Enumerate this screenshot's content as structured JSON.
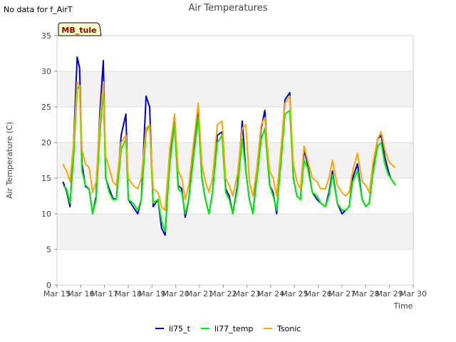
{
  "header": {
    "no_data": "No data for f_AirT",
    "title": "Air Temperatures"
  },
  "badge": "MB_tule",
  "chart_data": {
    "type": "line",
    "title": "Air Temperatures",
    "xlabel": "Time",
    "ylabel": "Air Temperature (C)",
    "ylim": [
      0,
      35
    ],
    "xlim": [
      15,
      30
    ],
    "yticks": [
      0,
      5,
      10,
      15,
      20,
      25,
      30,
      35
    ],
    "xticks": [
      15,
      16,
      17,
      18,
      19,
      20,
      21,
      22,
      23,
      24,
      25,
      26,
      27,
      28,
      29,
      30
    ],
    "xtick_labels": [
      "Mar 15",
      "Mar 16",
      "Mar 17",
      "Mar 18",
      "Mar 19",
      "Mar 20",
      "Mar 21",
      "Mar 22",
      "Mar 23",
      "Mar 24",
      "Mar 25",
      "Mar 26",
      "Mar 27",
      "Mar 28",
      "Mar 29",
      "Mar 30"
    ],
    "grid": true,
    "legend_position": "bottom",
    "series": [
      {
        "name": "li75_t",
        "color": "#0000cc",
        "x": [
          15.25,
          15.4,
          15.55,
          15.7,
          15.85,
          15.95,
          16.05,
          16.2,
          16.35,
          16.5,
          16.65,
          16.8,
          16.95,
          17.05,
          17.2,
          17.35,
          17.5,
          17.7,
          17.9,
          18.0,
          18.2,
          18.4,
          18.55,
          18.75,
          18.9,
          19.05,
          19.25,
          19.4,
          19.55,
          19.75,
          19.95,
          20.1,
          20.25,
          20.4,
          20.55,
          20.75,
          20.95,
          21.1,
          21.25,
          21.4,
          21.55,
          21.75,
          21.95,
          22.1,
          22.25,
          22.4,
          22.6,
          22.8,
          22.95,
          23.1,
          23.25,
          23.4,
          23.6,
          23.75,
          23.95,
          24.1,
          24.25,
          24.4,
          24.6,
          24.8,
          24.95,
          25.1,
          25.25,
          25.4,
          25.55,
          25.75,
          25.95,
          26.1,
          26.3,
          26.45,
          26.6,
          26.8,
          27.0,
          27.15,
          27.3,
          27.45,
          27.65,
          27.85,
          28.0,
          28.15,
          28.3,
          28.5,
          28.65,
          28.8,
          28.95,
          29.05,
          29.25
        ],
        "values": [
          14.5,
          13.2,
          11.0,
          20.0,
          32.0,
          30.5,
          17.0,
          13.8,
          13.5,
          10.0,
          12.5,
          24.0,
          31.5,
          15.0,
          13.5,
          12.2,
          12.0,
          21.0,
          24.0,
          12.0,
          11.0,
          10.0,
          12.0,
          26.5,
          25.0,
          11.0,
          12.0,
          8.0,
          7.0,
          18.0,
          23.5,
          14.0,
          13.5,
          9.5,
          12.0,
          19.0,
          25.0,
          15.0,
          12.0,
          10.0,
          13.0,
          21.0,
          21.5,
          13.5,
          12.5,
          10.0,
          14.0,
          23.0,
          16.0,
          12.0,
          10.0,
          15.0,
          22.0,
          24.5,
          14.0,
          13.0,
          10.0,
          17.0,
          26.0,
          27.0,
          15.0,
          12.5,
          12.0,
          19.0,
          17.0,
          13.0,
          12.0,
          11.5,
          11.0,
          13.0,
          16.0,
          11.5,
          10.0,
          10.5,
          11.0,
          15.0,
          17.0,
          12.0,
          11.0,
          11.5,
          16.0,
          20.5,
          21.0,
          18.0,
          16.0,
          15.0,
          14.0
        ]
      },
      {
        "name": "li77_temp",
        "color": "#00ee00",
        "x": [
          15.25,
          15.4,
          15.55,
          15.7,
          15.85,
          15.95,
          16.05,
          16.2,
          16.35,
          16.5,
          16.65,
          16.8,
          16.95,
          17.05,
          17.2,
          17.35,
          17.5,
          17.7,
          17.9,
          18.0,
          18.2,
          18.4,
          18.55,
          18.75,
          18.9,
          19.05,
          19.25,
          19.4,
          19.55,
          19.75,
          19.95,
          20.1,
          20.25,
          20.4,
          20.55,
          20.75,
          20.95,
          21.1,
          21.25,
          21.4,
          21.55,
          21.75,
          21.95,
          22.1,
          22.25,
          22.4,
          22.6,
          22.8,
          22.95,
          23.1,
          23.25,
          23.4,
          23.6,
          23.75,
          23.95,
          24.1,
          24.25,
          24.4,
          24.6,
          24.8,
          24.95,
          25.1,
          25.25,
          25.4,
          25.55,
          25.75,
          25.95,
          26.1,
          26.3,
          26.45,
          26.6,
          26.8,
          27.0,
          27.15,
          27.3,
          27.45,
          27.65,
          27.85,
          28.0,
          28.15,
          28.3,
          28.5,
          28.65,
          28.8,
          28.95,
          29.05,
          29.25
        ],
        "values": [
          14.0,
          13.5,
          11.5,
          18.0,
          27.5,
          28.0,
          16.0,
          14.0,
          13.5,
          10.0,
          12.0,
          21.0,
          27.5,
          15.0,
          13.0,
          12.0,
          12.0,
          19.0,
          20.5,
          12.0,
          11.5,
          10.5,
          12.0,
          21.5,
          22.5,
          11.5,
          12.0,
          9.0,
          7.5,
          17.0,
          22.5,
          13.5,
          13.0,
          10.0,
          12.0,
          18.0,
          23.5,
          15.0,
          12.0,
          10.0,
          13.0,
          20.0,
          21.0,
          13.0,
          12.0,
          10.0,
          13.5,
          20.5,
          16.0,
          12.0,
          10.0,
          14.5,
          20.5,
          22.0,
          14.0,
          12.5,
          10.5,
          16.0,
          24.0,
          24.5,
          15.0,
          12.5,
          12.0,
          17.5,
          16.5,
          13.0,
          12.5,
          11.5,
          11.0,
          12.5,
          15.5,
          11.5,
          10.5,
          10.5,
          11.0,
          14.5,
          16.0,
          12.0,
          11.0,
          11.5,
          15.5,
          19.5,
          20.0,
          17.0,
          15.5,
          15.0,
          14.0
        ]
      },
      {
        "name": "Tsonic",
        "color": "#ffa500",
        "x": [
          15.25,
          15.4,
          15.55,
          15.7,
          15.85,
          15.95,
          16.05,
          16.2,
          16.35,
          16.5,
          16.65,
          16.8,
          16.95,
          17.05,
          17.2,
          17.35,
          17.5,
          17.7,
          17.9,
          18.0,
          18.2,
          18.4,
          18.55,
          18.75,
          18.9,
          19.05,
          19.25,
          19.4,
          19.55,
          19.75,
          19.95,
          20.1,
          20.25,
          20.4,
          20.55,
          20.75,
          20.95,
          21.1,
          21.25,
          21.4,
          21.55,
          21.75,
          21.95,
          22.1,
          22.25,
          22.4,
          22.6,
          22.8,
          22.95,
          23.1,
          23.25,
          23.4,
          23.6,
          23.75,
          23.95,
          24.1,
          24.25,
          24.4,
          24.6,
          24.8,
          24.95,
          25.1,
          25.25,
          25.4,
          25.55,
          25.75,
          25.95,
          26.1,
          26.3,
          26.45,
          26.6,
          26.8,
          27.0,
          27.15,
          27.3,
          27.45,
          27.65,
          27.85,
          28.0,
          28.15,
          28.3,
          28.5,
          28.65,
          28.8,
          28.95,
          29.05,
          29.25
        ],
        "values": [
          17.0,
          16.0,
          14.5,
          20.0,
          28.5,
          28.0,
          19.0,
          17.0,
          16.5,
          13.0,
          14.5,
          23.0,
          28.5,
          18.0,
          16.5,
          14.5,
          14.0,
          20.0,
          21.0,
          15.0,
          14.0,
          13.5,
          15.0,
          22.0,
          22.5,
          13.5,
          13.0,
          11.0,
          10.5,
          19.0,
          24.0,
          16.0,
          15.0,
          12.0,
          14.0,
          20.0,
          25.5,
          17.0,
          14.5,
          13.0,
          15.0,
          22.5,
          23.0,
          15.0,
          14.0,
          12.5,
          15.5,
          22.0,
          22.5,
          14.5,
          12.5,
          16.0,
          22.5,
          23.5,
          16.0,
          15.0,
          12.5,
          18.0,
          25.5,
          26.5,
          17.0,
          14.5,
          13.5,
          19.5,
          17.5,
          15.0,
          14.5,
          13.5,
          13.5,
          15.0,
          17.5,
          14.0,
          13.0,
          12.5,
          13.0,
          16.0,
          18.5,
          14.5,
          14.0,
          13.0,
          17.0,
          20.5,
          21.5,
          19.0,
          17.5,
          17.0,
          16.5
        ]
      }
    ]
  }
}
